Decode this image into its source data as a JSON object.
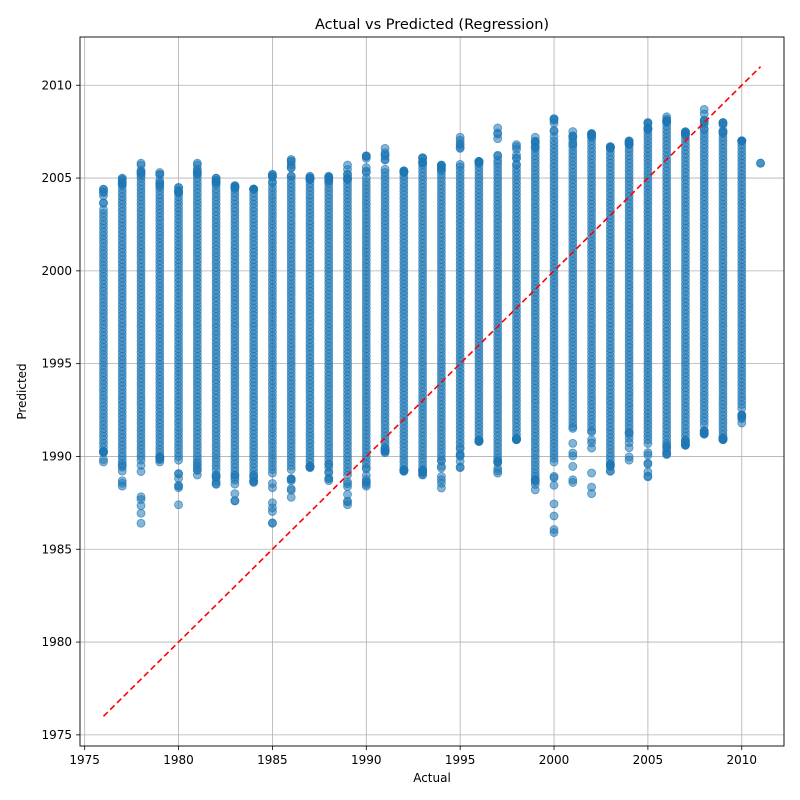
{
  "chart_data": {
    "type": "scatter",
    "title": "Actual vs Predicted (Regression)",
    "xlabel": "Actual",
    "ylabel": "Predicted",
    "xlim": [
      1974.75,
      2012.25
    ],
    "ylim": [
      1974.4,
      2012.6
    ],
    "xticks": [
      1975,
      1980,
      1985,
      1990,
      1995,
      2000,
      2005,
      2010
    ],
    "yticks": [
      1975,
      1980,
      1985,
      1990,
      1995,
      2000,
      2005,
      2010
    ],
    "grid": true,
    "point_color": "#1f77b4",
    "point_alpha": 0.55,
    "reference_line": {
      "style": "dashed",
      "color": "#ff0000",
      "from": [
        1976,
        1976
      ],
      "to": [
        2011,
        2011
      ]
    },
    "columns": [
      {
        "x": 1976,
        "lo": 1989.7,
        "hi": 2004.4,
        "band_lo": 1990.5,
        "band_hi": 2003.3
      },
      {
        "x": 1977,
        "lo": 1988.4,
        "hi": 2005.0,
        "band_lo": 1989.8,
        "band_hi": 2004.6
      },
      {
        "x": 1978,
        "lo": 1986.4,
        "hi": 2005.8,
        "band_lo": 1989.8,
        "band_hi": 2005.0
      },
      {
        "x": 1979,
        "lo": 1989.7,
        "hi": 2005.3,
        "band_lo": 1990.0,
        "band_hi": 2004.5
      },
      {
        "x": 1980,
        "lo": 1987.4,
        "hi": 2004.5,
        "band_lo": 1989.8,
        "band_hi": 2004.2
      },
      {
        "x": 1981,
        "lo": 1989.0,
        "hi": 2005.8,
        "band_lo": 1990.0,
        "band_hi": 2005.2
      },
      {
        "x": 1982,
        "lo": 1988.5,
        "hi": 2005.0,
        "band_lo": 1989.3,
        "band_hi": 2004.6
      },
      {
        "x": 1983,
        "lo": 1987.6,
        "hi": 2004.6,
        "band_lo": 1989.0,
        "band_hi": 2004.4
      },
      {
        "x": 1984,
        "lo": 1988.6,
        "hi": 2004.4,
        "band_lo": 1989.2,
        "band_hi": 2004.4
      },
      {
        "x": 1985,
        "lo": 1986.4,
        "hi": 2005.2,
        "band_lo": 1989.1,
        "band_hi": 2004.5
      },
      {
        "x": 1986,
        "lo": 1987.8,
        "hi": 2006.0,
        "band_lo": 1989.3,
        "band_hi": 2005.1
      },
      {
        "x": 1987,
        "lo": 1989.4,
        "hi": 2005.1,
        "band_lo": 1989.5,
        "band_hi": 2004.9
      },
      {
        "x": 1988,
        "lo": 1988.7,
        "hi": 2005.1,
        "band_lo": 1989.6,
        "band_hi": 2004.7
      },
      {
        "x": 1989,
        "lo": 1987.4,
        "hi": 2005.7,
        "band_lo": 1989.0,
        "band_hi": 2004.9
      },
      {
        "x": 1990,
        "lo": 1988.4,
        "hi": 2006.2,
        "band_lo": 1989.4,
        "band_hi": 2005.0
      },
      {
        "x": 1991,
        "lo": 1990.2,
        "hi": 2006.6,
        "band_lo": 1990.5,
        "band_hi": 2005.3
      },
      {
        "x": 1992,
        "lo": 1989.2,
        "hi": 2005.4,
        "band_lo": 1989.3,
        "band_hi": 2005.3
      },
      {
        "x": 1993,
        "lo": 1989.0,
        "hi": 2006.1,
        "band_lo": 1989.3,
        "band_hi": 2005.7
      },
      {
        "x": 1994,
        "lo": 1988.3,
        "hi": 2005.7,
        "band_lo": 1989.8,
        "band_hi": 2005.4
      },
      {
        "x": 1995,
        "lo": 1989.4,
        "hi": 2007.2,
        "band_lo": 1990.5,
        "band_hi": 2005.6
      },
      {
        "x": 1996,
        "lo": 1990.8,
        "hi": 2005.9,
        "band_lo": 1990.9,
        "band_hi": 2005.8
      },
      {
        "x": 1997,
        "lo": 1989.1,
        "hi": 2007.7,
        "band_lo": 1989.9,
        "band_hi": 2005.8
      },
      {
        "x": 1998,
        "lo": 1990.9,
        "hi": 2006.8,
        "band_lo": 1991.0,
        "band_hi": 2005.7
      },
      {
        "x": 1999,
        "lo": 1988.2,
        "hi": 2007.2,
        "band_lo": 1989.1,
        "band_hi": 2006.6
      },
      {
        "x": 2000,
        "lo": 1985.9,
        "hi": 2008.2,
        "band_lo": 1989.7,
        "band_hi": 2007.0
      },
      {
        "x": 2001,
        "lo": 1988.6,
        "hi": 2007.5,
        "band_lo": 1991.6,
        "band_hi": 2006.7
      },
      {
        "x": 2002,
        "lo": 1988.0,
        "hi": 2007.4,
        "band_lo": 1991.4,
        "band_hi": 2007.2
      },
      {
        "x": 2003,
        "lo": 1989.2,
        "hi": 2006.7,
        "band_lo": 1989.6,
        "band_hi": 2006.6
      },
      {
        "x": 2004,
        "lo": 1989.8,
        "hi": 2007.0,
        "band_lo": 1991.3,
        "band_hi": 2006.8
      },
      {
        "x": 2005,
        "lo": 1988.9,
        "hi": 2008.0,
        "band_lo": 1990.7,
        "band_hi": 2007.6
      },
      {
        "x": 2006,
        "lo": 1990.1,
        "hi": 2008.3,
        "band_lo": 1990.7,
        "band_hi": 2008.0
      },
      {
        "x": 2007,
        "lo": 1990.6,
        "hi": 2007.5,
        "band_lo": 1990.9,
        "band_hi": 2007.3
      },
      {
        "x": 2008,
        "lo": 1991.2,
        "hi": 2008.7,
        "band_lo": 1991.7,
        "band_hi": 2007.6
      },
      {
        "x": 2009,
        "lo": 1990.9,
        "hi": 2008.0,
        "band_lo": 1991.0,
        "band_hi": 2007.4
      },
      {
        "x": 2010,
        "lo": 1991.8,
        "hi": 2007.0,
        "band_lo": 1992.6,
        "band_hi": 2007.0
      },
      {
        "x": 2011,
        "lo": 2005.8,
        "hi": 2005.8,
        "band_lo": 2005.8,
        "band_hi": 2005.8
      }
    ]
  }
}
